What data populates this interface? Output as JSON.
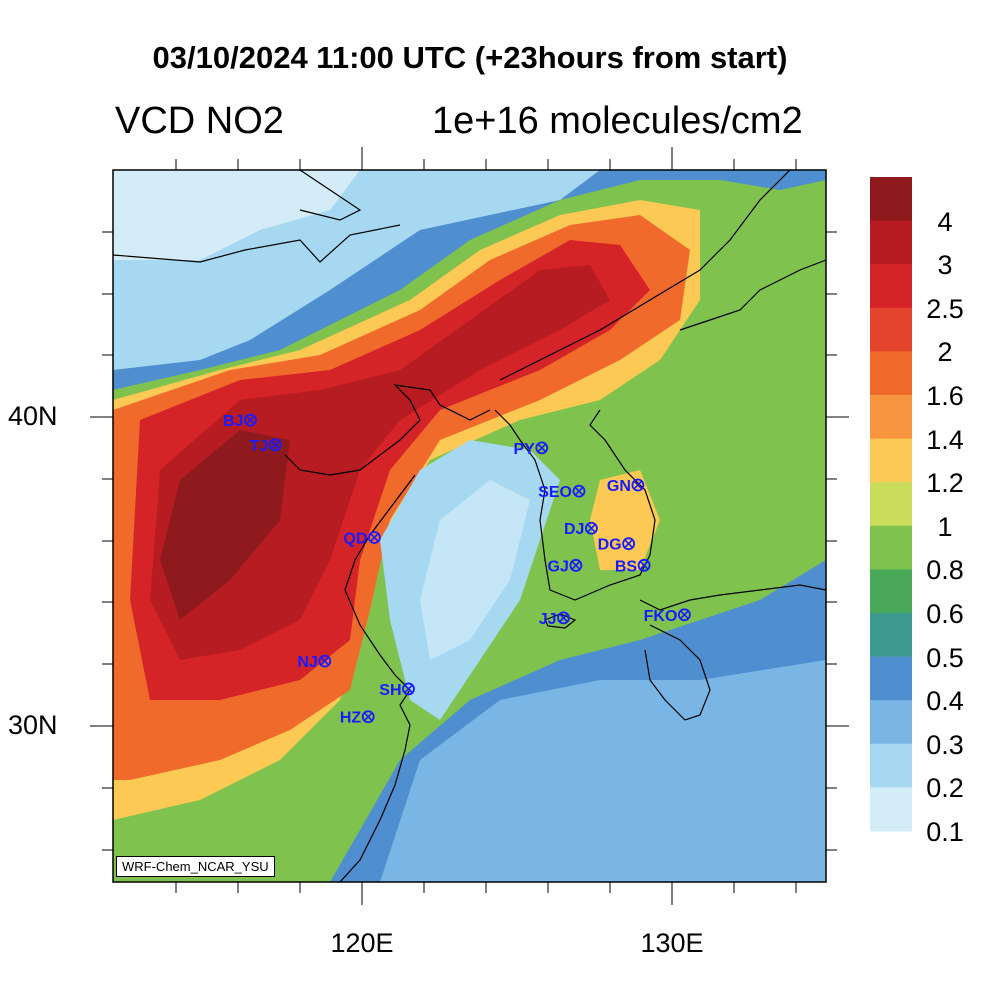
{
  "title": "03/10/2024 11:00 UTC (+23hours from start)",
  "variable": "VCD NO2",
  "units": "1e+16 molecules/cm2",
  "credit": "WRF-Chem_NCAR_YSU",
  "lat_labels": [
    "40N",
    "30N"
  ],
  "lon_labels": [
    "120E",
    "130E"
  ],
  "colorbar": {
    "labels": [
      "4",
      "3",
      "2.5",
      "2",
      "1.6",
      "1.4",
      "1.2",
      "1",
      "0.8",
      "0.6",
      "0.5",
      "0.4",
      "0.3",
      "0.2",
      "0.1"
    ],
    "colors": [
      "#8e1a1e",
      "#b71c22",
      "#d52428",
      "#e4432c",
      "#f06a2c",
      "#f7963e",
      "#fbc954",
      "#c9dc5c",
      "#7fc24e",
      "#4aa85a",
      "#3d9a8e",
      "#4f8fcf",
      "#79b6e6",
      "#a7d8f2",
      "#d4ecf8"
    ]
  },
  "cities": [
    {
      "code": "BJ",
      "lon": 116.4,
      "lat": 39.9
    },
    {
      "code": "TJ",
      "lon": 117.2,
      "lat": 39.1
    },
    {
      "code": "QD",
      "lon": 120.4,
      "lat": 36.1
    },
    {
      "code": "NJ",
      "lon": 118.8,
      "lat": 32.1
    },
    {
      "code": "SH",
      "lon": 121.5,
      "lat": 31.2
    },
    {
      "code": "HZ",
      "lon": 120.2,
      "lat": 30.3
    },
    {
      "code": "PY",
      "lon": 125.8,
      "lat": 39.0
    },
    {
      "code": "SEO",
      "lon": 127.0,
      "lat": 37.6
    },
    {
      "code": "GN",
      "lon": 128.9,
      "lat": 37.8
    },
    {
      "code": "DJ",
      "lon": 127.4,
      "lat": 36.4
    },
    {
      "code": "DG",
      "lon": 128.6,
      "lat": 35.9
    },
    {
      "code": "GJ",
      "lon": 126.9,
      "lat": 35.2
    },
    {
      "code": "BS",
      "lon": 129.1,
      "lat": 35.2
    },
    {
      "code": "JJ",
      "lon": 126.5,
      "lat": 33.5
    },
    {
      "code": "FKO",
      "lon": 130.4,
      "lat": 33.6
    }
  ],
  "colors": {
    "city_label": "#1a1aff",
    "coast": "#000000"
  }
}
